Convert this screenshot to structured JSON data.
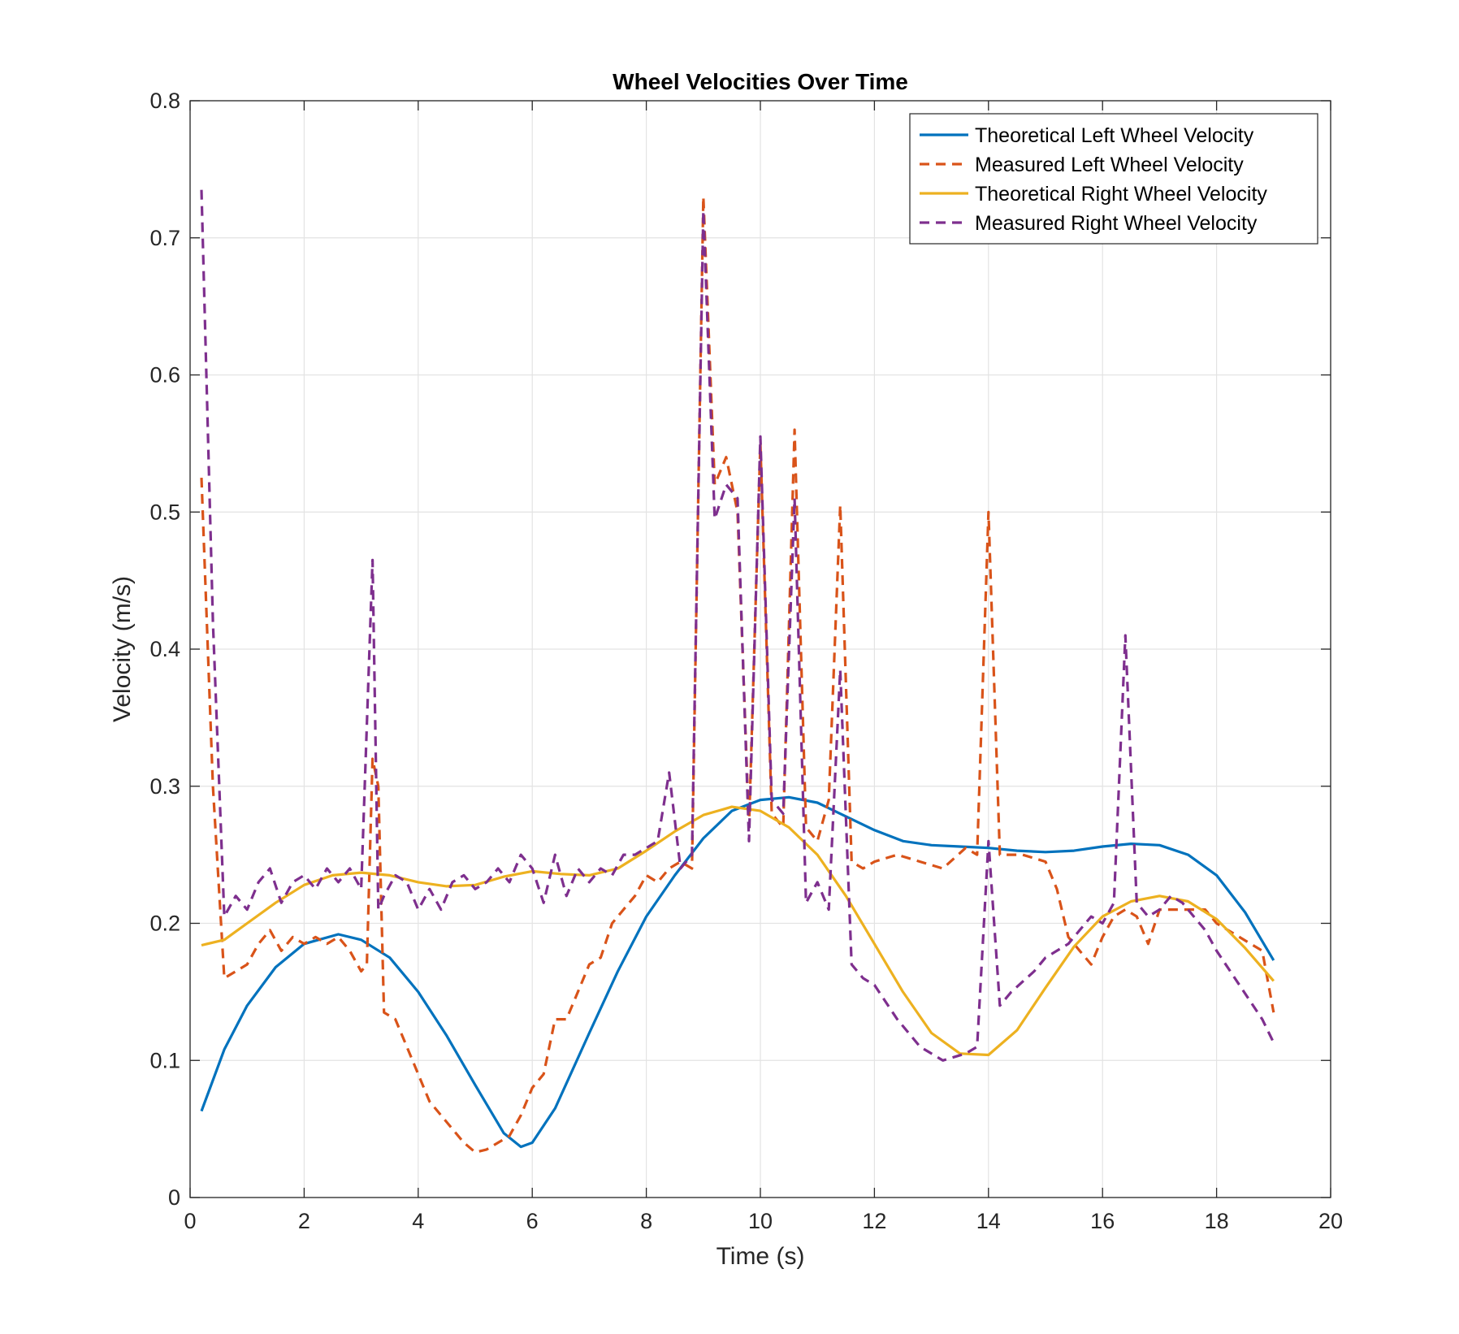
{
  "chart_data": {
    "type": "line",
    "title": "Wheel Velocities Over Time",
    "xlabel": "Time (s)",
    "ylabel": "Velocity (m/s)",
    "xlim": [
      0,
      20
    ],
    "ylim": [
      0,
      0.8
    ],
    "x_ticks": [
      "0",
      "2",
      "4",
      "6",
      "8",
      "10",
      "12",
      "14",
      "16",
      "18",
      "20"
    ],
    "y_ticks": [
      "0",
      "0.1",
      "0.2",
      "0.3",
      "0.4",
      "0.5",
      "0.6",
      "0.7",
      "0.8"
    ],
    "grid": true,
    "legend_position": "top-right",
    "series": [
      {
        "name": "Theoretical Left Wheel Velocity",
        "color": "#0072BD",
        "style": "solid",
        "x": [
          0.2,
          0.6,
          1.0,
          1.5,
          2.0,
          2.6,
          3.0,
          3.5,
          4.0,
          4.5,
          5.0,
          5.5,
          5.8,
          6.0,
          6.4,
          7.0,
          7.5,
          8.0,
          8.5,
          9.0,
          9.5,
          10.0,
          10.5,
          11.0,
          11.5,
          12.0,
          12.5,
          13.0,
          13.5,
          14.0,
          14.5,
          15.0,
          15.5,
          16.0,
          16.5,
          17.0,
          17.5,
          18.0,
          18.5,
          19.0
        ],
        "y": [
          0.063,
          0.108,
          0.14,
          0.168,
          0.185,
          0.192,
          0.188,
          0.175,
          0.15,
          0.118,
          0.082,
          0.047,
          0.037,
          0.04,
          0.065,
          0.12,
          0.165,
          0.205,
          0.235,
          0.262,
          0.282,
          0.29,
          0.292,
          0.288,
          0.278,
          0.268,
          0.26,
          0.257,
          0.256,
          0.255,
          0.253,
          0.252,
          0.253,
          0.256,
          0.258,
          0.257,
          0.25,
          0.235,
          0.208,
          0.173
        ]
      },
      {
        "name": "Measured Left Wheel Velocity",
        "color": "#D95319",
        "style": "dashed",
        "x": [
          0.2,
          0.4,
          0.6,
          0.8,
          1.0,
          1.2,
          1.4,
          1.6,
          1.8,
          2.0,
          2.2,
          2.4,
          2.6,
          2.8,
          3.0,
          3.1,
          3.2,
          3.3,
          3.4,
          3.6,
          3.8,
          4.0,
          4.2,
          4.4,
          4.6,
          4.8,
          5.0,
          5.2,
          5.4,
          5.6,
          5.8,
          6.0,
          6.2,
          6.4,
          6.6,
          6.8,
          7.0,
          7.2,
          7.4,
          7.6,
          7.8,
          8.0,
          8.2,
          8.4,
          8.6,
          8.8,
          9.0,
          9.2,
          9.4,
          9.6,
          9.8,
          10.0,
          10.2,
          10.4,
          10.6,
          10.8,
          11.0,
          11.2,
          11.4,
          11.6,
          11.8,
          12.0,
          12.4,
          12.8,
          13.2,
          13.6,
          13.8,
          14.0,
          14.2,
          14.6,
          15.0,
          15.2,
          15.4,
          15.6,
          15.8,
          16.0,
          16.2,
          16.4,
          16.6,
          16.8,
          17.0,
          17.2,
          17.4,
          17.6,
          17.8,
          18.0,
          18.4,
          18.8,
          19.0
        ],
        "y": [
          0.525,
          0.3,
          0.16,
          0.165,
          0.17,
          0.185,
          0.195,
          0.18,
          0.19,
          0.185,
          0.19,
          0.185,
          0.19,
          0.18,
          0.165,
          0.17,
          0.32,
          0.3,
          0.135,
          0.13,
          0.11,
          0.09,
          0.07,
          0.06,
          0.05,
          0.04,
          0.033,
          0.035,
          0.04,
          0.045,
          0.06,
          0.08,
          0.09,
          0.13,
          0.13,
          0.15,
          0.17,
          0.175,
          0.2,
          0.21,
          0.22,
          0.235,
          0.23,
          0.24,
          0.245,
          0.24,
          0.73,
          0.52,
          0.54,
          0.5,
          0.27,
          0.55,
          0.28,
          0.27,
          0.56,
          0.27,
          0.26,
          0.29,
          0.505,
          0.245,
          0.24,
          0.245,
          0.25,
          0.245,
          0.24,
          0.255,
          0.25,
          0.5,
          0.25,
          0.25,
          0.245,
          0.225,
          0.19,
          0.18,
          0.17,
          0.19,
          0.205,
          0.21,
          0.205,
          0.185,
          0.21,
          0.21,
          0.21,
          0.21,
          0.21,
          0.2,
          0.19,
          0.18,
          0.135
        ]
      },
      {
        "name": "Theoretical Right Wheel Velocity",
        "color": "#EDB120",
        "style": "solid",
        "x": [
          0.2,
          0.6,
          1.0,
          1.5,
          2.0,
          2.5,
          3.0,
          3.5,
          4.0,
          4.5,
          5.0,
          5.5,
          6.0,
          6.5,
          7.0,
          7.5,
          8.0,
          8.5,
          9.0,
          9.5,
          10.0,
          10.5,
          11.0,
          11.5,
          12.0,
          12.5,
          13.0,
          13.5,
          14.0,
          14.5,
          15.0,
          15.5,
          16.0,
          16.5,
          17.0,
          17.5,
          18.0,
          18.5,
          19.0
        ],
        "y": [
          0.184,
          0.188,
          0.2,
          0.215,
          0.228,
          0.235,
          0.237,
          0.235,
          0.23,
          0.227,
          0.228,
          0.234,
          0.238,
          0.236,
          0.235,
          0.24,
          0.253,
          0.267,
          0.279,
          0.285,
          0.282,
          0.27,
          0.25,
          0.22,
          0.185,
          0.15,
          0.12,
          0.105,
          0.104,
          0.122,
          0.153,
          0.183,
          0.205,
          0.216,
          0.22,
          0.216,
          0.203,
          0.182,
          0.158
        ]
      },
      {
        "name": "Measured Right Wheel Velocity",
        "color": "#7E2F8E",
        "style": "dashed",
        "x": [
          0.2,
          0.4,
          0.6,
          0.8,
          1.0,
          1.2,
          1.4,
          1.6,
          1.8,
          2.0,
          2.2,
          2.4,
          2.6,
          2.8,
          3.0,
          3.2,
          3.3,
          3.4,
          3.6,
          3.8,
          4.0,
          4.2,
          4.4,
          4.6,
          4.8,
          5.0,
          5.2,
          5.4,
          5.6,
          5.8,
          6.0,
          6.2,
          6.4,
          6.6,
          6.8,
          7.0,
          7.2,
          7.4,
          7.6,
          7.8,
          8.0,
          8.2,
          8.4,
          8.6,
          8.8,
          9.0,
          9.2,
          9.4,
          9.6,
          9.8,
          10.0,
          10.2,
          10.4,
          10.6,
          10.8,
          11.0,
          11.2,
          11.4,
          11.6,
          11.8,
          12.0,
          12.4,
          12.8,
          13.2,
          13.6,
          13.8,
          14.0,
          14.2,
          14.4,
          14.8,
          15.0,
          15.2,
          15.4,
          15.6,
          15.8,
          16.0,
          16.2,
          16.4,
          16.6,
          16.8,
          17.0,
          17.2,
          17.4,
          17.6,
          17.8,
          18.0,
          18.4,
          18.8,
          19.0
        ],
        "y": [
          0.735,
          0.42,
          0.205,
          0.22,
          0.21,
          0.23,
          0.24,
          0.215,
          0.23,
          0.235,
          0.225,
          0.24,
          0.23,
          0.24,
          0.225,
          0.465,
          0.21,
          0.22,
          0.235,
          0.23,
          0.21,
          0.225,
          0.21,
          0.23,
          0.235,
          0.225,
          0.23,
          0.24,
          0.23,
          0.25,
          0.24,
          0.215,
          0.25,
          0.22,
          0.24,
          0.23,
          0.24,
          0.235,
          0.25,
          0.25,
          0.255,
          0.26,
          0.31,
          0.24,
          0.25,
          0.72,
          0.495,
          0.52,
          0.51,
          0.26,
          0.555,
          0.29,
          0.28,
          0.51,
          0.215,
          0.23,
          0.21,
          0.385,
          0.17,
          0.16,
          0.155,
          0.13,
          0.11,
          0.1,
          0.105,
          0.11,
          0.26,
          0.14,
          0.15,
          0.165,
          0.175,
          0.18,
          0.185,
          0.195,
          0.205,
          0.2,
          0.215,
          0.41,
          0.215,
          0.205,
          0.21,
          0.22,
          0.215,
          0.205,
          0.195,
          0.18,
          0.155,
          0.13,
          0.113
        ]
      }
    ]
  }
}
